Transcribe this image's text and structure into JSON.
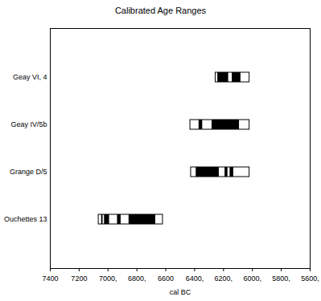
{
  "chart_data": {
    "type": "range",
    "title": "Calibrated Age Ranges",
    "x_label": "cal BC",
    "categories": [
      "Geay VI, 4",
      "Geay IV/5b",
      "Grange D/5",
      "Ouchettes 13"
    ],
    "xlim": [
      7400,
      5600
    ],
    "xticks": [
      {
        "value": 7400,
        "label": "7400"
      },
      {
        "value": 7200,
        "label": "7200"
      },
      {
        "value": 7000,
        "label": "7000,"
      },
      {
        "value": 6800,
        "label": "6800,"
      },
      {
        "value": 6600,
        "label": "6600"
      },
      {
        "value": 6400,
        "label": "6400,"
      },
      {
        "value": 6200,
        "label": "6200,"
      },
      {
        "value": 6000,
        "label": "6000,"
      },
      {
        "value": 5800,
        "label": "5800,"
      },
      {
        "value": 5600,
        "label": "5600,"
      }
    ],
    "ranges": [
      [
        6255,
        6020
      ],
      [
        6430,
        6020
      ],
      [
        6425,
        6020
      ],
      [
        7065,
        6620
      ]
    ],
    "inner_ranges": [
      [
        [
          6240,
          6165
        ],
        [
          6140,
          6080
        ]
      ],
      [
        [
          6370,
          6345
        ],
        [
          6280,
          6090
        ]
      ],
      [
        [
          6390,
          6230
        ],
        [
          6190,
          6170
        ],
        [
          6155,
          6130
        ]
      ],
      [
        [
          7045,
          7035
        ],
        [
          7025,
          6990
        ],
        [
          6935,
          6910
        ],
        [
          6855,
          6670
        ]
      ]
    ],
    "color": "#000000"
  }
}
